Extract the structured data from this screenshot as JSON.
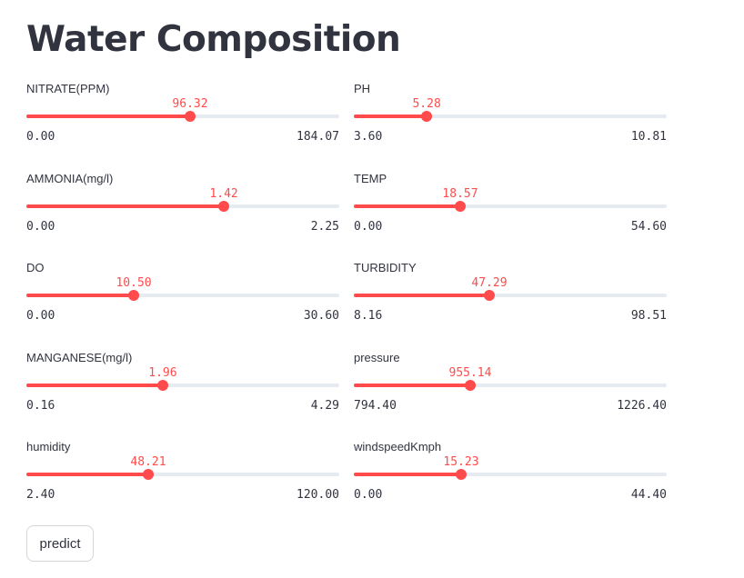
{
  "title": "Water Composition",
  "sliders": [
    {
      "label": "NITRATE(PPM)",
      "value": "96.32",
      "min": "0.00",
      "max": "184.07"
    },
    {
      "label": "PH",
      "value": "5.28",
      "min": "3.60",
      "max": "10.81"
    },
    {
      "label": "AMMONIA(mg/l)",
      "value": "1.42",
      "min": "0.00",
      "max": "2.25"
    },
    {
      "label": "TEMP",
      "value": "18.57",
      "min": "0.00",
      "max": "54.60"
    },
    {
      "label": "DO",
      "value": "10.50",
      "min": "0.00",
      "max": "30.60"
    },
    {
      "label": "TURBIDITY",
      "value": "47.29",
      "min": "8.16",
      "max": "98.51"
    },
    {
      "label": "MANGANESE(mg/l)",
      "value": "1.96",
      "min": "0.16",
      "max": "4.29"
    },
    {
      "label": "pressure",
      "value": "955.14",
      "min": "794.40",
      "max": "1226.40"
    },
    {
      "label": "humidity",
      "value": "48.21",
      "min": "2.40",
      "max": "120.00"
    },
    {
      "label": "windspeedKmph",
      "value": "15.23",
      "min": "0.00",
      "max": "44.40"
    }
  ],
  "predict_button": "predict",
  "colors": {
    "accent": "#ff4b4b",
    "track": "#e6eaf1",
    "text": "#31333f"
  }
}
